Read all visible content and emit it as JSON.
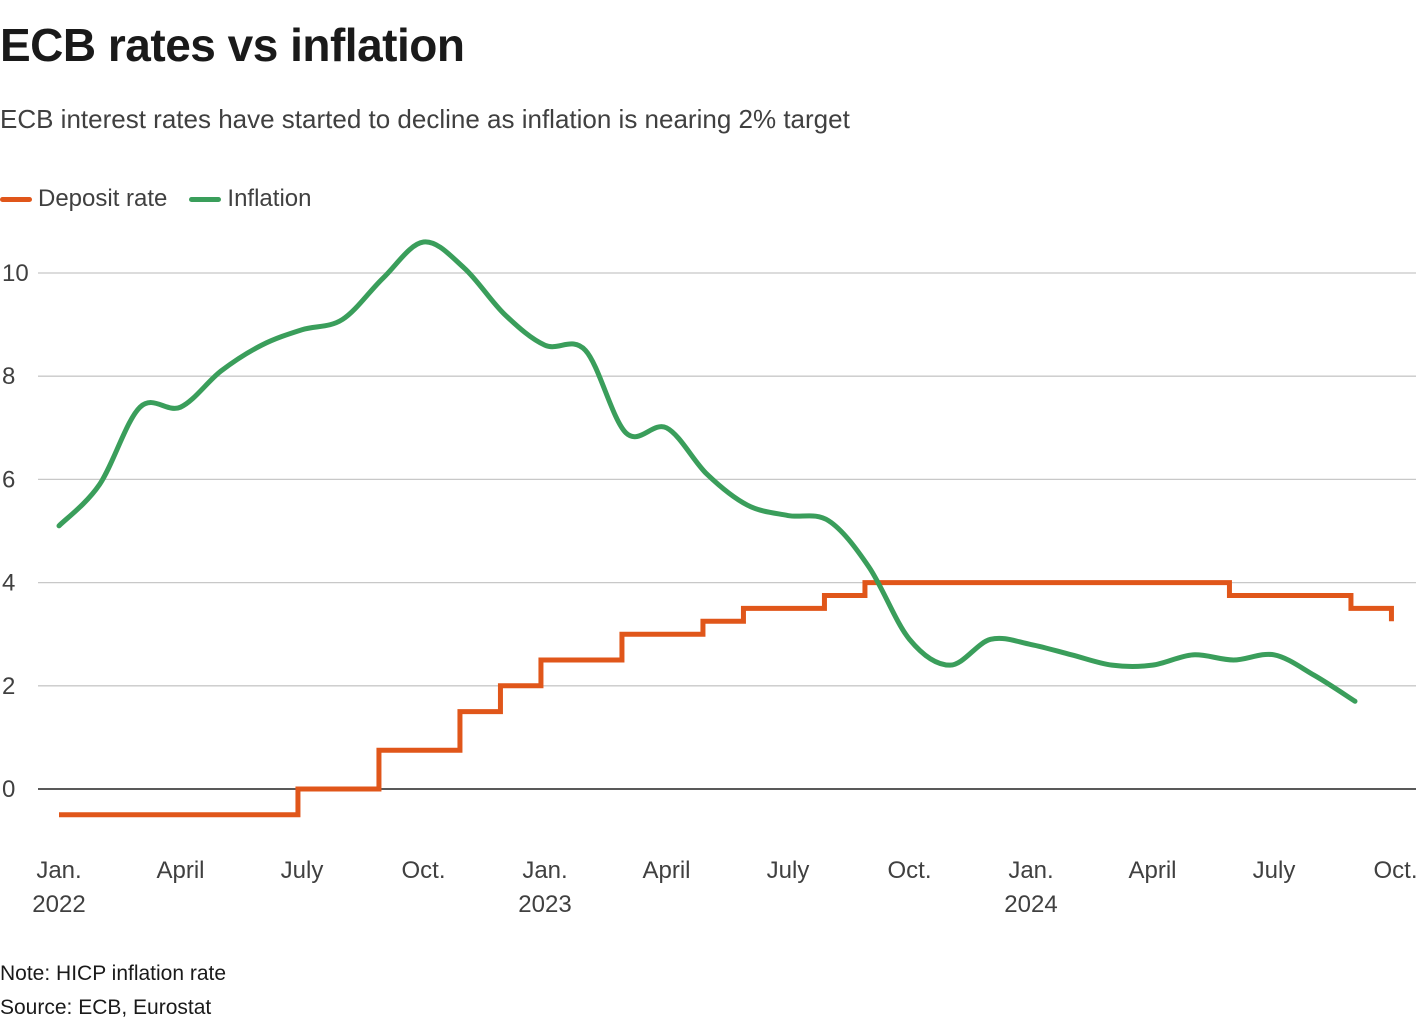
{
  "title": "ECB rates vs inflation",
  "subtitle": "ECB interest rates have started to decline as inflation is nearing 2% target",
  "note": "Note: HICP inflation rate",
  "source": "Source: ECB, Eurostat",
  "colors": {
    "deposit": "#e0561a",
    "inflation": "#3a9e5b",
    "grid": "#c8c8c8",
    "zero": "#222222",
    "tick": "#404040"
  },
  "chart_data": {
    "type": "line",
    "title": "ECB rates vs inflation",
    "xlabel": "",
    "ylabel": "",
    "ylim": [
      -1.2,
      11
    ],
    "yticks": [
      0,
      2,
      4,
      6,
      8,
      10
    ],
    "x_ticks": [
      {
        "month": 0,
        "label": "Jan.",
        "year": "2022"
      },
      {
        "month": 3,
        "label": "April",
        "year": ""
      },
      {
        "month": 6,
        "label": "July",
        "year": ""
      },
      {
        "month": 9,
        "label": "Oct.",
        "year": ""
      },
      {
        "month": 12,
        "label": "Jan.",
        "year": "2023"
      },
      {
        "month": 15,
        "label": "April",
        "year": ""
      },
      {
        "month": 18,
        "label": "July",
        "year": ""
      },
      {
        "month": 21,
        "label": "Oct.",
        "year": ""
      },
      {
        "month": 24,
        "label": "Jan.",
        "year": "2024"
      },
      {
        "month": 27,
        "label": "April",
        "year": ""
      },
      {
        "month": 30,
        "label": "July",
        "year": ""
      },
      {
        "month": 33,
        "label": "Oct.",
        "year": ""
      }
    ],
    "xlim": [
      0,
      33.2
    ],
    "series": [
      {
        "name": "Deposit rate",
        "kind": "step",
        "points": [
          [
            0,
            -0.5
          ],
          [
            5.9,
            -0.5
          ],
          [
            5.9,
            0
          ],
          [
            7.9,
            0
          ],
          [
            7.9,
            0.75
          ],
          [
            9.9,
            0.75
          ],
          [
            9.9,
            1.5
          ],
          [
            10.9,
            1.5
          ],
          [
            10.9,
            2
          ],
          [
            11.9,
            2
          ],
          [
            11.9,
            2.5
          ],
          [
            13.9,
            2.5
          ],
          [
            13.9,
            3
          ],
          [
            15.9,
            3
          ],
          [
            15.9,
            3.25
          ],
          [
            16.9,
            3.25
          ],
          [
            16.9,
            3.5
          ],
          [
            18.9,
            3.5
          ],
          [
            18.9,
            3.75
          ],
          [
            19.9,
            3.75
          ],
          [
            19.9,
            4
          ],
          [
            28.9,
            4
          ],
          [
            28.9,
            3.75
          ],
          [
            31.9,
            3.75
          ],
          [
            31.9,
            3.5
          ],
          [
            32.9,
            3.5
          ],
          [
            32.9,
            3.25
          ]
        ]
      },
      {
        "name": "Inflation",
        "kind": "line",
        "points": [
          [
            0,
            5.1
          ],
          [
            1,
            5.9
          ],
          [
            2,
            7.4
          ],
          [
            3,
            7.4
          ],
          [
            4,
            8.1
          ],
          [
            5,
            8.6
          ],
          [
            6,
            8.9
          ],
          [
            7,
            9.1
          ],
          [
            8,
            9.9
          ],
          [
            9,
            10.6
          ],
          [
            10,
            10.1
          ],
          [
            11,
            9.2
          ],
          [
            12,
            8.6
          ],
          [
            13,
            8.5
          ],
          [
            14,
            6.9
          ],
          [
            15,
            7.0
          ],
          [
            16,
            6.1
          ],
          [
            17,
            5.5
          ],
          [
            18,
            5.3
          ],
          [
            19,
            5.2
          ],
          [
            20,
            4.3
          ],
          [
            21,
            2.9
          ],
          [
            22,
            2.4
          ],
          [
            23,
            2.9
          ],
          [
            24,
            2.8
          ],
          [
            25,
            2.6
          ],
          [
            26,
            2.4
          ],
          [
            27,
            2.4
          ],
          [
            28,
            2.6
          ],
          [
            29,
            2.5
          ],
          [
            30,
            2.6
          ],
          [
            31,
            2.2
          ],
          [
            32,
            1.7
          ]
        ]
      }
    ]
  }
}
